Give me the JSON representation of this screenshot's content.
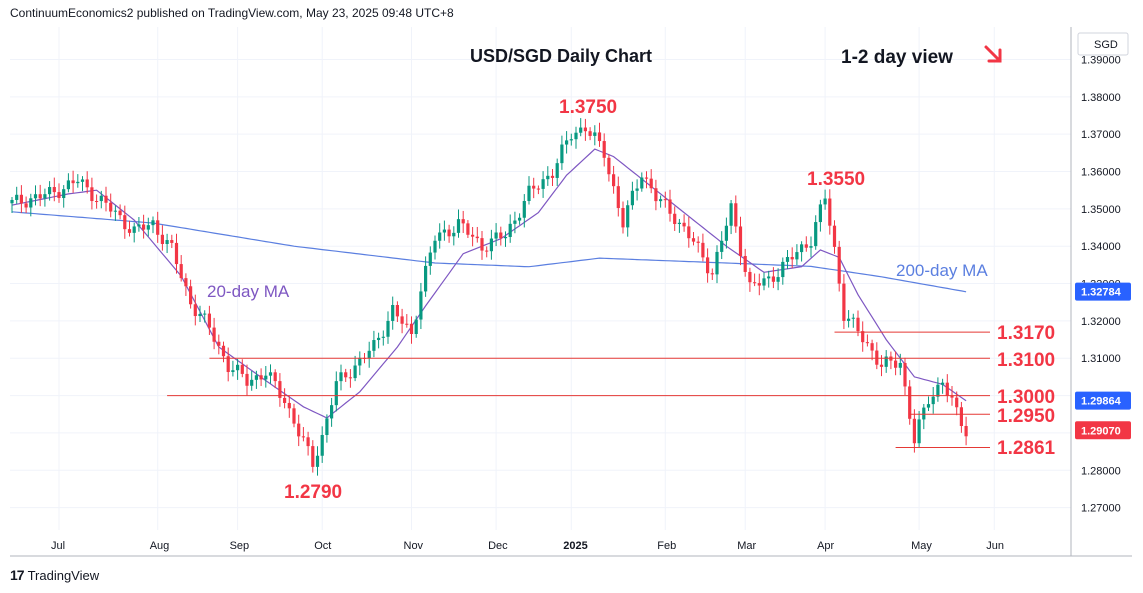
{
  "header": {
    "text": "ContinuumEconomics2 published on TradingView.com, May 23, 2025 09:48 UTC+8"
  },
  "footer": {
    "brand": "TradingView",
    "logo": "tradingview-logo-icon"
  },
  "colors": {
    "up": "#089981",
    "down": "#f23645",
    "ma20": "#7e57c2",
    "ma200": "#5b7fe0",
    "annot": "#f23645",
    "level_line": "#e53935",
    "price_tag": "#2962ff"
  },
  "chart_data": {
    "type": "candlestick",
    "title": "USD/SGD Daily Chart",
    "view": "1-2 day view",
    "currency_label": "SGD",
    "y_ticks": [
      "1.39000",
      "1.38000",
      "1.37000",
      "1.36000",
      "1.35000",
      "1.34000",
      "1.33000",
      "1.32000",
      "1.31000",
      "1.30000",
      "1.29000",
      "1.28000",
      "1.27000"
    ],
    "ylim": [
      1.264,
      1.3987
    ],
    "x_ticks": [
      "Jul",
      "Aug",
      "Sep",
      "Oct",
      "Nov",
      "Dec",
      "2025",
      "Feb",
      "Mar",
      "Apr",
      "May",
      "Jun"
    ],
    "price_tags": [
      {
        "label": "1.32784",
        "value": 1.32784
      },
      {
        "label": "1.29864",
        "value": 1.29864
      },
      {
        "label": "1.29070",
        "value": 1.2907
      }
    ],
    "ma_labels": [
      {
        "label": "20-day MA"
      },
      {
        "label": "200-day MA"
      }
    ],
    "annotations": [
      {
        "label": "1.3750",
        "value": 1.375
      },
      {
        "label": "1.3550",
        "value": 1.355
      },
      {
        "label": "1.2790",
        "value": 1.279
      },
      {
        "label": "1.3170",
        "value": 1.317
      },
      {
        "label": "1.3100",
        "value": 1.31
      },
      {
        "label": "1.3000",
        "value": 1.3
      },
      {
        "label": "1.2950",
        "value": 1.295
      },
      {
        "label": "1.2861",
        "value": 1.2861
      }
    ],
    "close_path": [
      [
        0,
        1.3515
      ],
      [
        8,
        1.354
      ],
      [
        14,
        1.3575
      ],
      [
        20,
        1.351
      ],
      [
        26,
        1.344
      ],
      [
        30,
        1.346
      ],
      [
        34,
        1.339
      ],
      [
        38,
        1.325
      ],
      [
        42,
        1.318
      ],
      [
        46,
        1.308
      ],
      [
        50,
        1.304
      ],
      [
        54,
        1.306
      ],
      [
        58,
        1.299
      ],
      [
        61,
        1.29
      ],
      [
        64,
        1.282
      ],
      [
        66,
        1.289
      ],
      [
        69,
        1.303
      ],
      [
        73,
        1.308
      ],
      [
        77,
        1.313
      ],
      [
        81,
        1.323
      ],
      [
        85,
        1.316
      ],
      [
        87,
        1.329
      ],
      [
        90,
        1.342
      ],
      [
        95,
        1.346
      ],
      [
        100,
        1.34
      ],
      [
        105,
        1.343
      ],
      [
        110,
        1.354
      ],
      [
        115,
        1.36
      ],
      [
        119,
        1.37
      ],
      [
        122,
        1.372
      ],
      [
        126,
        1.365
      ],
      [
        130,
        1.346
      ],
      [
        134,
        1.36
      ],
      [
        137,
        1.353
      ],
      [
        141,
        1.348
      ],
      [
        145,
        1.341
      ],
      [
        149,
        1.333
      ],
      [
        153,
        1.35
      ],
      [
        157,
        1.329
      ],
      [
        161,
        1.331
      ],
      [
        166,
        1.337
      ],
      [
        170,
        1.342
      ],
      [
        173,
        1.353
      ],
      [
        175,
        1.339
      ],
      [
        177,
        1.322
      ],
      [
        180,
        1.317
      ],
      [
        183,
        1.312
      ],
      [
        185,
        1.308
      ],
      [
        189,
        1.309
      ],
      [
        192,
        1.288
      ],
      [
        195,
        1.299
      ],
      [
        198,
        1.304
      ],
      [
        201,
        1.295
      ],
      [
        203,
        1.2907
      ]
    ],
    "ma200_path": [
      [
        0,
        1.3492
      ],
      [
        30,
        1.3462
      ],
      [
        60,
        1.34
      ],
      [
        90,
        1.3355
      ],
      [
        110,
        1.3345
      ],
      [
        125,
        1.3368
      ],
      [
        150,
        1.3356
      ],
      [
        170,
        1.3346
      ],
      [
        185,
        1.3318
      ],
      [
        203,
        1.3278
      ]
    ],
    "ma20_path": [
      [
        0,
        1.351
      ],
      [
        12,
        1.354
      ],
      [
        18,
        1.355
      ],
      [
        26,
        1.347
      ],
      [
        36,
        1.332
      ],
      [
        44,
        1.313
      ],
      [
        54,
        1.304
      ],
      [
        62,
        1.297
      ],
      [
        67,
        1.294
      ],
      [
        74,
        1.301
      ],
      [
        82,
        1.313
      ],
      [
        88,
        1.324
      ],
      [
        96,
        1.338
      ],
      [
        104,
        1.342
      ],
      [
        112,
        1.349
      ],
      [
        118,
        1.359
      ],
      [
        124,
        1.366
      ],
      [
        128,
        1.364
      ],
      [
        136,
        1.356
      ],
      [
        144,
        1.348
      ],
      [
        152,
        1.34
      ],
      [
        160,
        1.333
      ],
      [
        168,
        1.3345
      ],
      [
        172,
        1.339
      ],
      [
        176,
        1.337
      ],
      [
        180,
        1.327
      ],
      [
        186,
        1.315
      ],
      [
        192,
        1.305
      ],
      [
        198,
        1.303
      ],
      [
        203,
        1.2986
      ]
    ]
  }
}
